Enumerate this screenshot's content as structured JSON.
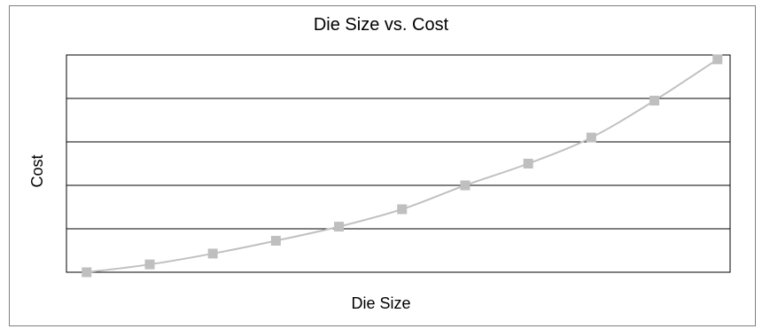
{
  "chart_data": {
    "type": "line",
    "title": "Die Size vs. Cost",
    "xlabel": "Die Size",
    "ylabel": "Cost",
    "x": [
      1,
      2,
      3,
      4,
      5,
      6,
      7,
      8,
      9,
      10,
      11
    ],
    "series": [
      {
        "values": [
          0.0,
          0.036,
          0.086,
          0.145,
          0.21,
          0.29,
          0.4,
          0.5,
          0.62,
          0.79,
          0.98
        ]
      }
    ],
    "xlim": [
      0.68,
      11.2
    ],
    "ylim": [
      0,
      1
    ],
    "grid": true,
    "legend": "none",
    "smooth": true,
    "colors": {
      "series": "#c0c0c0",
      "marker": "#bfbfbf",
      "grid": "#000000",
      "frame": "#7f7f7f"
    },
    "marker": "square"
  }
}
